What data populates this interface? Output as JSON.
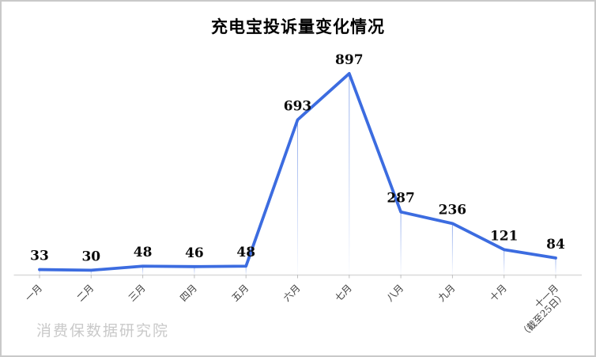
{
  "figure": {
    "watermark": "消费保数据研究院"
  },
  "chart_data": {
    "type": "line",
    "title": "充电宝投诉量变化情况",
    "categories": [
      "一月",
      "二月",
      "三月",
      "四月",
      "五月",
      "六月",
      "七月",
      "八月",
      "九月",
      "十月",
      "十一月\n（截至25日）"
    ],
    "values": [
      33,
      30,
      48,
      46,
      48,
      693,
      897,
      287,
      236,
      121,
      84
    ],
    "xlabel": "",
    "ylabel": "",
    "ylim": [
      0,
      970
    ],
    "grid": "off",
    "legend_position": "none",
    "data_labels": true,
    "droplines": true,
    "colors": {
      "series_line": "#3c6ce0",
      "dropline": "#7c9ce9",
      "axis_line": "#d9d9d9",
      "axis_tick": "#bfbfbf",
      "value_label": "#0a0a0a",
      "category_label": "#3a3a3a",
      "title": "#000000",
      "watermark": "#c9c9c9",
      "page_border": "#c9c9c9"
    }
  }
}
